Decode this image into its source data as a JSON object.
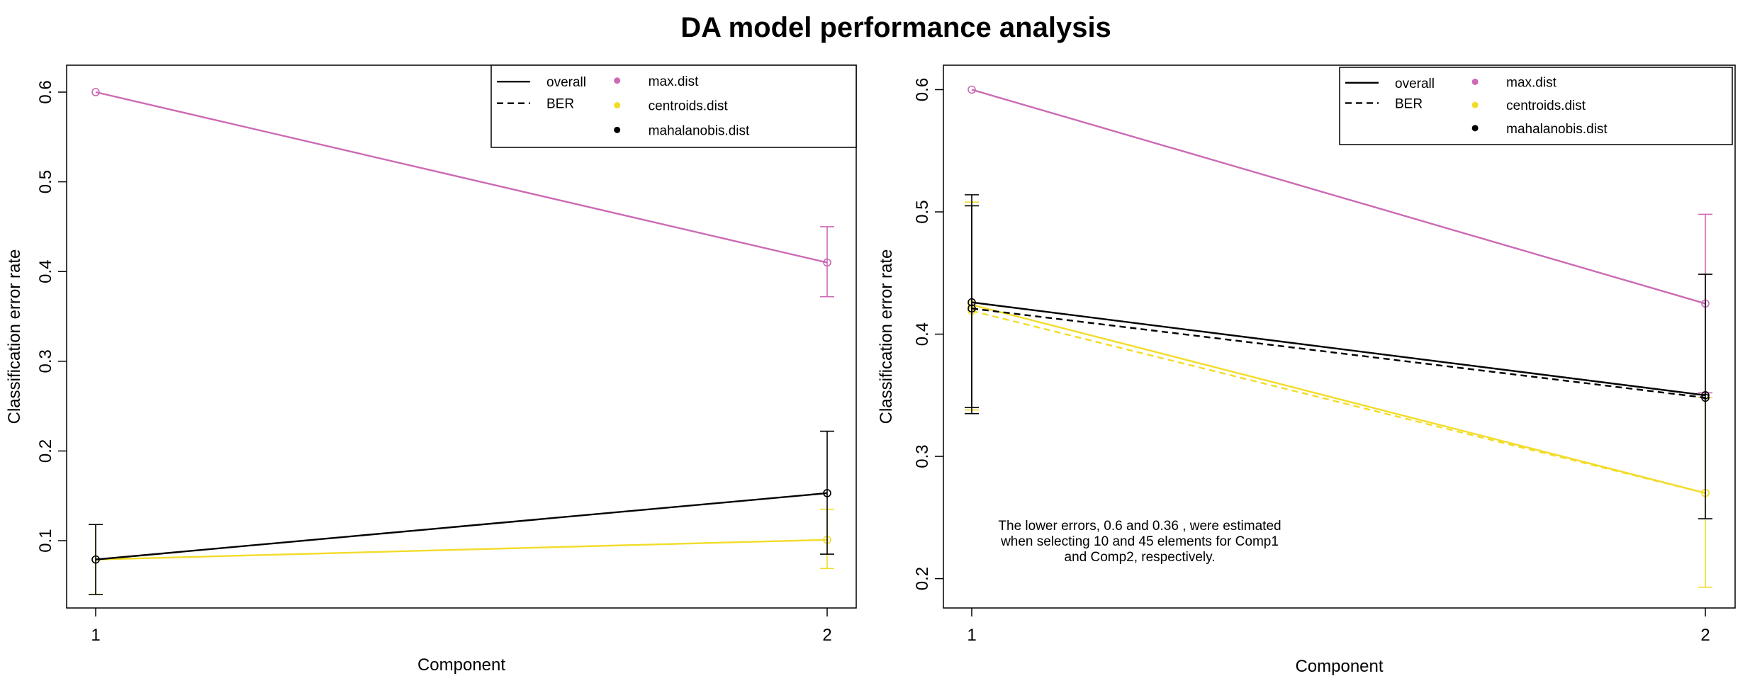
{
  "figure": {
    "title": "DA model performance analysis"
  },
  "colors": {
    "max.dist": "#CC6AB4",
    "centroids.dist": "#F2DC2A",
    "mahalanobis.dist": "#000000"
  },
  "chart_data": [
    {
      "type": "line",
      "title": "",
      "xlabel": "Component",
      "ylabel": "Classification error rate",
      "x": [
        1,
        2
      ],
      "xticks": [
        "1",
        "2"
      ],
      "ylim": [
        0.025,
        0.63
      ],
      "yticks": [
        "0.1",
        "0.2",
        "0.3",
        "0.4",
        "0.5",
        "0.6"
      ],
      "ytick_values": [
        0.1,
        0.2,
        0.3,
        0.4,
        0.5,
        0.6
      ],
      "grid": false,
      "legend": {
        "position": "top-right",
        "line_entries": [
          {
            "label": "overall",
            "style": "solid"
          },
          {
            "label": "BER",
            "style": "dashed"
          }
        ],
        "point_entries": [
          {
            "label": "max.dist",
            "color": "#CC6AB4"
          },
          {
            "label": "centroids.dist",
            "color": "#F2DC2A"
          },
          {
            "label": "mahalanobis.dist",
            "color": "#000000"
          }
        ]
      },
      "series": [
        {
          "name": "max.dist",
          "measure": "overall",
          "color": "#CC6AB4",
          "values": [
            0.6,
            0.41
          ],
          "err_low": [
            null,
            0.372
          ],
          "err_high": [
            null,
            0.45
          ]
        },
        {
          "name": "centroids.dist",
          "measure": "overall",
          "color": "#F2DC2A",
          "values": [
            0.079,
            0.101
          ],
          "err_low": [
            0.04,
            0.069
          ],
          "err_high": [
            0.118,
            0.135
          ]
        },
        {
          "name": "mahalanobis.dist",
          "measure": "overall",
          "color": "#000000",
          "values": [
            0.079,
            0.153
          ],
          "err_low": [
            0.04,
            0.085
          ],
          "err_high": [
            0.118,
            0.222
          ]
        }
      ],
      "annotation": []
    },
    {
      "type": "line",
      "title": "",
      "xlabel": "Component",
      "ylabel": "Classification error rate",
      "x": [
        1,
        2
      ],
      "xticks": [
        "1",
        "2"
      ],
      "ylim": [
        0.176,
        0.62
      ],
      "yticks": [
        "0.2",
        "0.3",
        "0.4",
        "0.5",
        "0.6"
      ],
      "ytick_values": [
        0.2,
        0.3,
        0.4,
        0.5,
        0.6
      ],
      "grid": false,
      "legend": {
        "position": "top-right",
        "line_entries": [
          {
            "label": "overall",
            "style": "solid"
          },
          {
            "label": "BER",
            "style": "dashed"
          }
        ],
        "point_entries": [
          {
            "label": "max.dist",
            "color": "#CC6AB4"
          },
          {
            "label": "centroids.dist",
            "color": "#F2DC2A"
          },
          {
            "label": "mahalanobis.dist",
            "color": "#000000"
          }
        ]
      },
      "series": [
        {
          "name": "max.dist",
          "measure": "overall",
          "color": "#CC6AB4",
          "values": [
            0.6,
            0.425
          ],
          "err_low": [
            null,
            0.352
          ],
          "err_high": [
            null,
            0.498
          ]
        },
        {
          "name": "centroids.dist",
          "measure": "overall",
          "color": "#F2DC2A",
          "values": [
            0.424,
            0.27
          ],
          "err_low": [
            0.338,
            0.193
          ],
          "err_high": [
            0.508,
            0.348
          ]
        },
        {
          "name": "centroids.dist",
          "measure": "BER",
          "color": "#F2DC2A",
          "values": [
            0.419,
            0.27
          ],
          "err_low": [
            null,
            null
          ],
          "err_high": [
            null,
            null
          ]
        },
        {
          "name": "mahalanobis.dist",
          "measure": "overall",
          "color": "#000000",
          "values": [
            0.426,
            0.35
          ],
          "err_low": [
            0.335,
            0.249
          ],
          "err_high": [
            0.514,
            0.449
          ]
        },
        {
          "name": "mahalanobis.dist",
          "measure": "BER",
          "color": "#000000",
          "values": [
            0.421,
            0.348
          ],
          "err_low": [
            0.34,
            null
          ],
          "err_high": [
            0.505,
            null
          ]
        }
      ],
      "annotation": [
        "The lower errors, 0.6 and 0.36 , were estimated",
        "when selecting 10 and 45 elements for Comp1",
        "and Comp2, respectively."
      ]
    }
  ]
}
